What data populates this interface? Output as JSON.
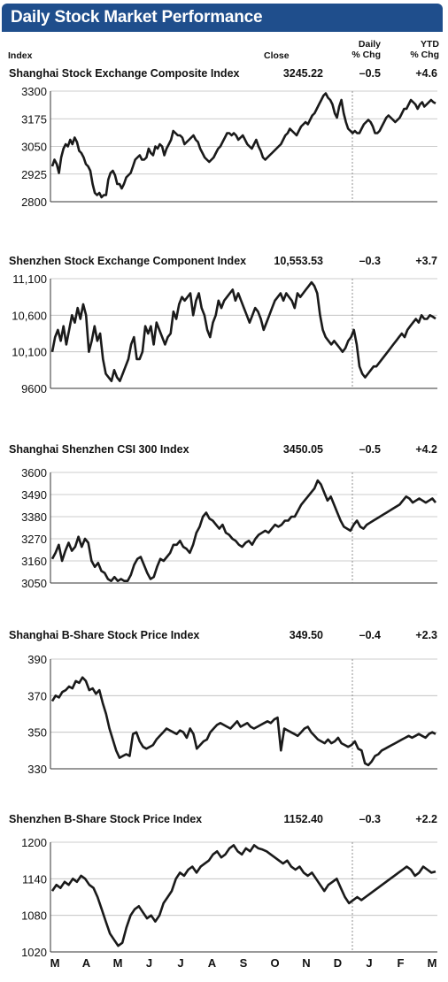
{
  "title": "Daily Stock Market Performance",
  "columns": {
    "index": "Index",
    "close": "Close",
    "daily": [
      "Daily",
      "% Chg"
    ],
    "ytd": [
      "YTD",
      "% Chg"
    ]
  },
  "months": [
    "M",
    "A",
    "M",
    "J",
    "J",
    "A",
    "S",
    "O",
    "N",
    "D",
    "J",
    "F",
    "M"
  ],
  "colors": {
    "title_bar": "#1f4e8c",
    "line": "#1a1a1a",
    "grid": "#bbbbbb"
  },
  "chart_data": [
    {
      "type": "line",
      "name": "Shanghai Stock Exchange Composite Index",
      "close": "3245.22",
      "daily": "–0.5",
      "ytd": "+4.6",
      "ylim": [
        2800,
        3300
      ],
      "yticks": [
        "3300",
        "3175",
        "3050",
        "2925",
        "2800"
      ],
      "values": [
        2960,
        2990,
        2970,
        2930,
        3000,
        3040,
        3060,
        3050,
        3080,
        3060,
        3090,
        3070,
        3030,
        3020,
        3000,
        2970,
        2960,
        2940,
        2880,
        2840,
        2830,
        2840,
        2820,
        2830,
        2830,
        2900,
        2930,
        2940,
        2920,
        2880,
        2880,
        2860,
        2880,
        2910,
        2920,
        2930,
        2960,
        2990,
        3000,
        3010,
        2990,
        2990,
        3000,
        3040,
        3020,
        3010,
        3050,
        3040,
        3060,
        3050,
        3010,
        3040,
        3060,
        3080,
        3120,
        3110,
        3100,
        3100,
        3090,
        3060,
        3070,
        3080,
        3090,
        3100,
        3080,
        3070,
        3040,
        3020,
        3000,
        2990,
        2980,
        2990,
        3000,
        3020,
        3040,
        3050,
        3070,
        3090,
        3110,
        3110,
        3100,
        3110,
        3100,
        3080,
        3090,
        3100,
        3080,
        3060,
        3050,
        3040,
        3060,
        3080,
        3050,
        3030,
        3000,
        2990,
        3000,
        3010,
        3020,
        3030,
        3040,
        3050,
        3060,
        3080,
        3100,
        3110,
        3130,
        3120,
        3110,
        3100,
        3120,
        3140,
        3150,
        3160,
        3150,
        3170,
        3190,
        3200,
        3220,
        3240,
        3260,
        3280,
        3290,
        3270,
        3260,
        3240,
        3200,
        3180,
        3230,
        3260,
        3200,
        3160,
        3130,
        3120,
        3110,
        3120,
        3110,
        3110,
        3130,
        3150,
        3160,
        3170,
        3160,
        3140,
        3110,
        3110,
        3120,
        3140,
        3160,
        3180,
        3190,
        3180,
        3170,
        3160,
        3170,
        3180,
        3200,
        3220,
        3220,
        3240,
        3260,
        3250,
        3240,
        3220,
        3240,
        3250,
        3230,
        3240,
        3250,
        3260,
        3250,
        3245
      ]
    },
    {
      "type": "line",
      "name": "Shenzhen Stock Exchange Component Index",
      "close": "10,553.53",
      "daily": "–0.3",
      "ytd": "+3.7",
      "ylim": [
        9600,
        11100
      ],
      "yticks": [
        "11,100",
        "10,600",
        "10,100",
        "9600"
      ],
      "values": [
        10100,
        10300,
        10400,
        10250,
        10450,
        10200,
        10400,
        10600,
        10500,
        10700,
        10550,
        10750,
        10600,
        10100,
        10250,
        10450,
        10250,
        10350,
        10000,
        9800,
        9750,
        9700,
        9850,
        9750,
        9700,
        9800,
        9900,
        10000,
        10200,
        10300,
        10000,
        10000,
        10100,
        10450,
        10350,
        10450,
        10200,
        10500,
        10400,
        10300,
        10200,
        10300,
        10350,
        10650,
        10550,
        10750,
        10850,
        10800,
        10850,
        10900,
        10600,
        10800,
        10900,
        10700,
        10600,
        10400,
        10300,
        10500,
        10600,
        10800,
        10700,
        10800,
        10850,
        10900,
        10950,
        10800,
        10900,
        10800,
        10700,
        10600,
        10500,
        10600,
        10700,
        10650,
        10550,
        10400,
        10500,
        10600,
        10700,
        10800,
        10850,
        10900,
        10800,
        10900,
        10850,
        10800,
        10700,
        10900,
        10850,
        10900,
        10950,
        11000,
        11050,
        11000,
        10900,
        10600,
        10400,
        10300,
        10250,
        10200,
        10250,
        10200,
        10150,
        10100,
        10150,
        10250,
        10300,
        10400,
        10200,
        9900,
        9800,
        9750,
        9800,
        9850,
        9900,
        9900,
        9950,
        10000,
        10050,
        10100,
        10150,
        10200,
        10250,
        10300,
        10350,
        10300,
        10400,
        10450,
        10500,
        10550,
        10500,
        10600,
        10550,
        10550,
        10600,
        10580,
        10553
      ]
    },
    {
      "type": "line",
      "name": "Shanghai Shenzhen CSI 300 Index",
      "close": "3450.05",
      "daily": "–0.5",
      "ytd": "+4.2",
      "ylim": [
        3050,
        3600
      ],
      "yticks": [
        "3600",
        "3490",
        "3380",
        "3270",
        "3160",
        "3050"
      ],
      "values": [
        3170,
        3200,
        3240,
        3160,
        3210,
        3250,
        3210,
        3230,
        3280,
        3230,
        3270,
        3250,
        3160,
        3130,
        3150,
        3110,
        3100,
        3070,
        3060,
        3080,
        3060,
        3070,
        3060,
        3060,
        3090,
        3140,
        3170,
        3180,
        3140,
        3100,
        3070,
        3080,
        3130,
        3170,
        3160,
        3180,
        3200,
        3240,
        3240,
        3260,
        3230,
        3220,
        3200,
        3240,
        3300,
        3330,
        3380,
        3400,
        3370,
        3360,
        3340,
        3320,
        3340,
        3300,
        3290,
        3270,
        3260,
        3240,
        3230,
        3250,
        3260,
        3240,
        3270,
        3290,
        3300,
        3310,
        3300,
        3320,
        3340,
        3330,
        3340,
        3360,
        3360,
        3380,
        3380,
        3410,
        3440,
        3460,
        3480,
        3500,
        3520,
        3560,
        3540,
        3500,
        3460,
        3480,
        3440,
        3400,
        3360,
        3330,
        3320,
        3310,
        3340,
        3360,
        3330,
        3320,
        3340,
        3350,
        3360,
        3370,
        3380,
        3390,
        3400,
        3410,
        3420,
        3430,
        3440,
        3460,
        3480,
        3470,
        3450,
        3460,
        3470,
        3460,
        3450,
        3460,
        3470,
        3450
      ]
    },
    {
      "type": "line",
      "name": "Shanghai B-Share Stock Price Index",
      "close": "349.50",
      "daily": "–0.4",
      "ytd": "+2.3",
      "ylim": [
        330,
        390
      ],
      "yticks": [
        "390",
        "370",
        "350",
        "330"
      ],
      "values": [
        367,
        370,
        369,
        372,
        373,
        375,
        374,
        378,
        377,
        380,
        378,
        373,
        374,
        371,
        373,
        366,
        360,
        352,
        346,
        340,
        336,
        337,
        338,
        337,
        349,
        350,
        345,
        342,
        341,
        342,
        343,
        346,
        348,
        350,
        352,
        351,
        350,
        349,
        351,
        350,
        347,
        352,
        349,
        341,
        343,
        345,
        346,
        350,
        352,
        354,
        355,
        354,
        353,
        352,
        354,
        356,
        353,
        354,
        355,
        353,
        352,
        353,
        354,
        355,
        356,
        355,
        357,
        358,
        340,
        352,
        351,
        350,
        349,
        348,
        350,
        352,
        353,
        350,
        348,
        346,
        345,
        344,
        346,
        344,
        345,
        347,
        344,
        343,
        342,
        343,
        345,
        341,
        340,
        333,
        332,
        334,
        337,
        338,
        340,
        341,
        342,
        343,
        344,
        345,
        346,
        347,
        348,
        347,
        348,
        349,
        348,
        347,
        349,
        350,
        349
      ]
    },
    {
      "type": "line",
      "name": "Shenzhen B-Share Stock Price Index",
      "close": "1152.40",
      "daily": "–0.3",
      "ytd": "+2.2",
      "ylim": [
        1020,
        1200
      ],
      "yticks": [
        "1200",
        "1140",
        "1080",
        "1020"
      ],
      "values": [
        1120,
        1130,
        1125,
        1135,
        1130,
        1140,
        1135,
        1145,
        1140,
        1130,
        1125,
        1110,
        1090,
        1070,
        1050,
        1040,
        1030,
        1035,
        1060,
        1080,
        1090,
        1095,
        1085,
        1075,
        1080,
        1070,
        1080,
        1100,
        1110,
        1120,
        1140,
        1150,
        1145,
        1155,
        1160,
        1150,
        1160,
        1165,
        1170,
        1180,
        1185,
        1175,
        1180,
        1190,
        1195,
        1185,
        1180,
        1190,
        1185,
        1195,
        1190,
        1188,
        1185,
        1180,
        1175,
        1170,
        1165,
        1170,
        1160,
        1155,
        1160,
        1150,
        1145,
        1150,
        1140,
        1130,
        1120,
        1130,
        1135,
        1140,
        1125,
        1110,
        1100,
        1105,
        1110,
        1105,
        1110,
        1115,
        1120,
        1125,
        1130,
        1135,
        1140,
        1145,
        1150,
        1155,
        1160,
        1155,
        1145,
        1150,
        1160,
        1155,
        1150,
        1152
      ]
    }
  ]
}
